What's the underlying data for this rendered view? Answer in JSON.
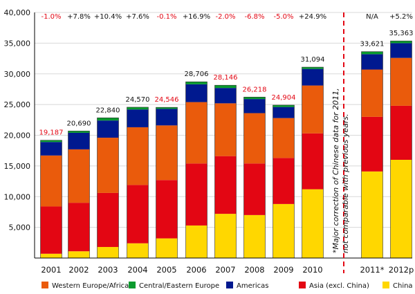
{
  "chart_data": {
    "type": "stacked-bar",
    "categories": [
      "2001",
      "2002",
      "2003",
      "2004",
      "2005",
      "2006",
      "2007",
      "2008",
      "2009",
      "2010",
      "2011*",
      "2012p"
    ],
    "ylim": [
      0,
      40000
    ],
    "yticks": [
      "5,000",
      "10,000",
      "15,000",
      "20,000",
      "25,000",
      "30,000",
      "35,000",
      "40,000"
    ],
    "ytick_values": [
      5000,
      10000,
      15000,
      20000,
      25000,
      30000,
      35000,
      40000
    ],
    "grid": true,
    "legend_position": "bottom",
    "series": [
      {
        "name": "China",
        "color": "#ffd700",
        "values": [
          700,
          1100,
          1800,
          2400,
          3200,
          5300,
          7200,
          7000,
          8800,
          11200,
          14100,
          16000
        ]
      },
      {
        "name": "Asia (excl. China)",
        "color": "#e30613",
        "values": [
          7700,
          7900,
          8800,
          9500,
          9500,
          10100,
          9400,
          8400,
          7500,
          9100,
          8900,
          8800
        ]
      },
      {
        "name": "Western Europe/Africa",
        "color": "#ea5b0c",
        "values": [
          8300,
          8700,
          9000,
          9400,
          8900,
          10000,
          8600,
          8200,
          6500,
          7800,
          7700,
          7800
        ]
      },
      {
        "name": "Americas",
        "color": "#00198f",
        "values": [
          2200,
          2700,
          2800,
          2900,
          2700,
          2900,
          2500,
          2300,
          1800,
          2700,
          2500,
          2400
        ]
      },
      {
        "name": "Central/Eastern Europe",
        "color": "#0a9a2e",
        "values": [
          287,
          290,
          440,
          370,
          246,
          406,
          446,
          318,
          304,
          294,
          421,
          363
        ]
      }
    ],
    "totals": [
      "19,187",
      "20,690",
      "22,840",
      "24,570",
      "24,546",
      "28,706",
      "28,146",
      "26,218",
      "24,904",
      "31,094",
      "33,621",
      "35,363"
    ],
    "totals_red": [
      true,
      false,
      false,
      false,
      true,
      false,
      true,
      true,
      true,
      false,
      false,
      false
    ],
    "growth": [
      "-1.0%",
      "+7.8%",
      "+10.4%",
      "+7.6%",
      "-0.1%",
      "+16.9%",
      "-2.0%",
      "-6.8%",
      "-5.0%",
      "+24.9%",
      "N/A",
      "+5.2%"
    ],
    "growth_red": [
      true,
      false,
      false,
      false,
      true,
      false,
      true,
      true,
      true,
      false,
      false,
      false
    ],
    "legend_order": [
      2,
      4,
      3,
      1,
      0
    ],
    "annotation": "*Major correction of Chinese data for 2011, not comparable with previous years.",
    "colors": {
      "label_red": "#e30613",
      "divider": "#e30613",
      "text": "#111111",
      "grid": "#d8d8d8"
    }
  }
}
